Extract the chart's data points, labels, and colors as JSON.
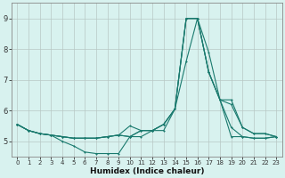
{
  "xlabel": "Humidex (Indice chaleur)",
  "ylabel": "",
  "xlim": [
    -0.5,
    23.5
  ],
  "ylim": [
    4.5,
    9.5
  ],
  "yticks": [
    5,
    6,
    7,
    8,
    9
  ],
  "xticks": [
    0,
    1,
    2,
    3,
    4,
    5,
    6,
    7,
    8,
    9,
    10,
    11,
    12,
    13,
    14,
    15,
    16,
    17,
    18,
    19,
    20,
    21,
    22,
    23
  ],
  "bg_color": "#d8f2ef",
  "plot_bg_color": "#d8f2ef",
  "grid_color": "#b8c8c4",
  "line_color": "#1a7a6e",
  "line1_y": [
    5.55,
    5.35,
    5.25,
    5.2,
    5.15,
    5.1,
    5.1,
    5.1,
    5.15,
    5.2,
    5.5,
    5.35,
    5.35,
    5.55,
    6.05,
    9.0,
    9.0,
    7.25,
    6.35,
    6.2,
    5.45,
    5.25,
    5.25,
    5.15
  ],
  "line2_y": [
    5.55,
    5.35,
    5.25,
    5.2,
    5.0,
    4.85,
    4.65,
    4.6,
    4.6,
    4.6,
    5.15,
    5.15,
    5.35,
    5.35,
    6.05,
    9.0,
    9.0,
    7.25,
    6.35,
    5.15,
    5.15,
    5.1,
    5.1,
    5.15
  ],
  "line3_y": [
    5.55,
    5.35,
    5.25,
    5.2,
    5.15,
    5.1,
    5.1,
    5.1,
    5.15,
    5.2,
    5.15,
    5.35,
    5.35,
    5.55,
    6.05,
    7.6,
    9.0,
    7.25,
    6.35,
    5.45,
    5.15,
    5.1,
    5.1,
    5.15
  ],
  "line4_y": [
    5.55,
    5.35,
    5.25,
    5.2,
    5.15,
    5.1,
    5.1,
    5.1,
    5.15,
    5.2,
    5.15,
    5.35,
    5.35,
    5.55,
    6.05,
    9.0,
    9.0,
    7.9,
    6.35,
    6.35,
    5.45,
    5.25,
    5.25,
    5.15
  ]
}
